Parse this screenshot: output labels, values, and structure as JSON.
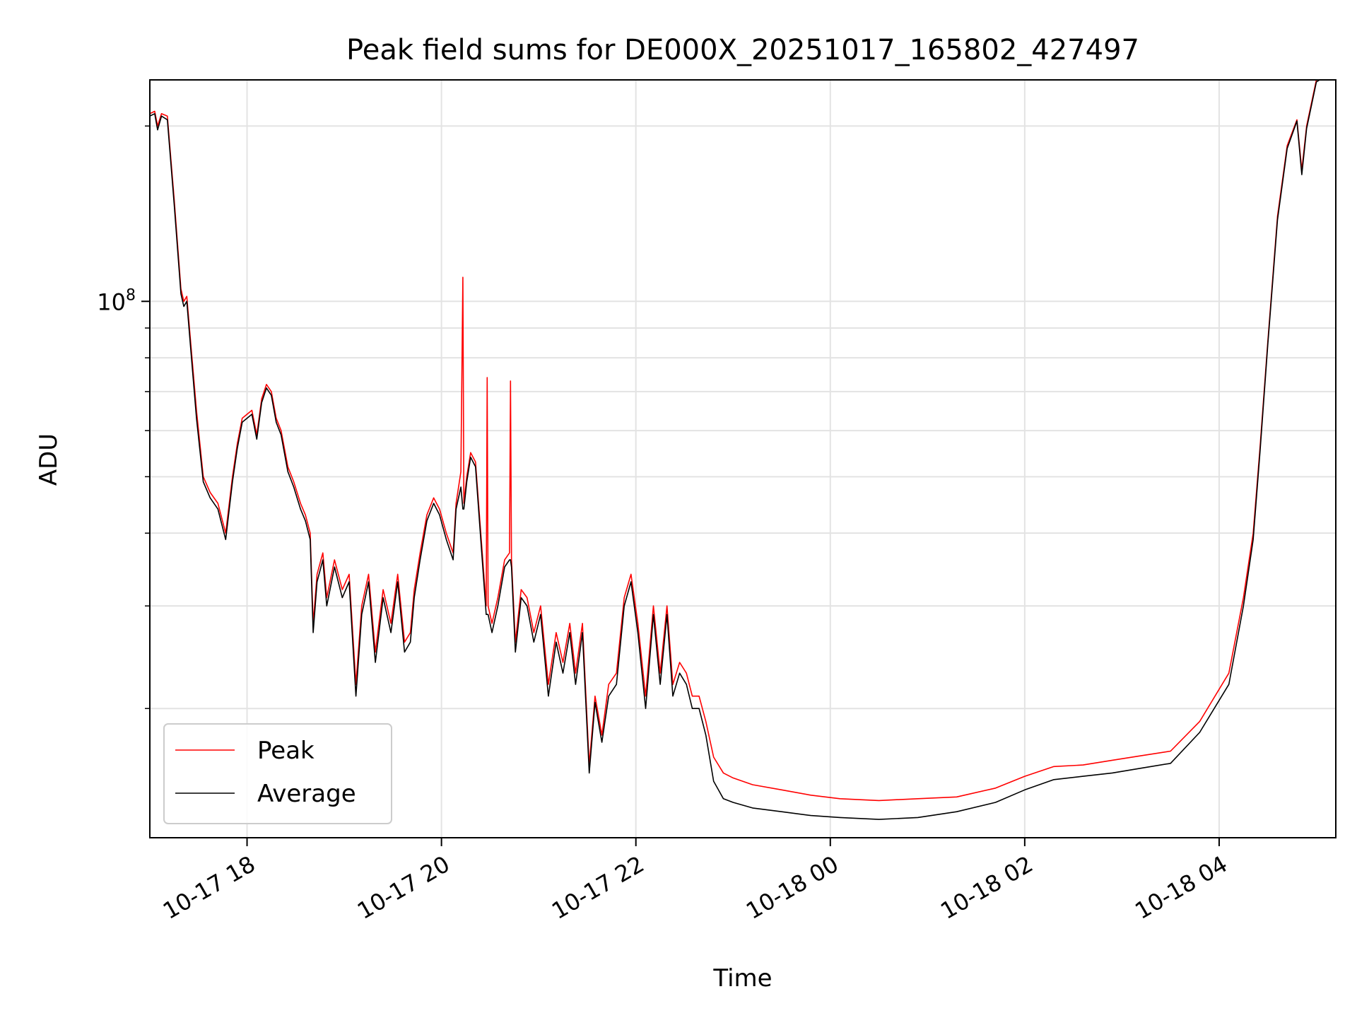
{
  "chart_data": {
    "type": "line",
    "title": "Peak field sums for DE000X_20251017_165802_427497",
    "xlabel": "Time",
    "ylabel": "ADU",
    "yscale": "log",
    "xlim": [
      17.0,
      29.2
    ],
    "ylim": [
      12000000,
      240000000
    ],
    "x_unit": "hours since 2025-10-17 00:00",
    "grid": true,
    "legend_position": "lower-left",
    "x_ticks": [
      {
        "value": 18,
        "label": "10-17 18"
      },
      {
        "value": 20,
        "label": "10-17 20"
      },
      {
        "value": 22,
        "label": "10-17 22"
      },
      {
        "value": 24,
        "label": "10-18 00"
      },
      {
        "value": 26,
        "label": "10-18 02"
      },
      {
        "value": 28,
        "label": "10-18 04"
      }
    ],
    "y_major_ticks": [
      {
        "value": 100000000,
        "base": "10",
        "exponent": "8"
      }
    ],
    "y_minor_ticks": [
      20000000,
      30000000,
      40000000,
      50000000,
      60000000,
      70000000,
      80000000,
      90000000,
      200000000
    ],
    "series": [
      {
        "name": "Peak",
        "color": "#ff0000",
        "x": [
          17.0,
          17.05,
          17.08,
          17.12,
          17.18,
          17.25,
          17.32,
          17.35,
          17.38,
          17.42,
          17.48,
          17.55,
          17.62,
          17.7,
          17.78,
          17.85,
          17.9,
          17.95,
          18.05,
          18.1,
          18.15,
          18.2,
          18.25,
          18.3,
          18.35,
          18.42,
          18.48,
          18.55,
          18.6,
          18.65,
          18.68,
          18.72,
          18.78,
          18.82,
          18.9,
          18.98,
          19.05,
          19.12,
          19.18,
          19.25,
          19.32,
          19.4,
          19.48,
          19.55,
          19.62,
          19.68,
          19.72,
          19.78,
          19.85,
          19.92,
          19.98,
          20.05,
          20.12,
          20.15,
          20.2,
          20.22,
          20.23,
          20.26,
          20.3,
          20.35,
          20.4,
          20.46,
          20.47,
          20.48,
          20.52,
          20.58,
          20.65,
          20.7,
          20.71,
          20.72,
          20.76,
          20.82,
          20.88,
          20.95,
          21.02,
          21.1,
          21.18,
          21.25,
          21.32,
          21.38,
          21.45,
          21.52,
          21.58,
          21.65,
          21.72,
          21.8,
          21.88,
          21.95,
          22.02,
          22.1,
          22.18,
          22.25,
          22.32,
          22.38,
          22.45,
          22.52,
          22.58,
          22.65,
          22.72,
          22.8,
          22.9,
          23.0,
          23.2,
          23.5,
          23.8,
          24.1,
          24.5,
          24.9,
          25.3,
          25.7,
          26.0,
          26.3,
          26.6,
          26.9,
          27.2,
          27.5,
          27.8,
          28.1,
          28.25,
          28.35,
          28.42,
          28.5,
          28.6,
          28.7,
          28.8,
          28.85,
          28.9,
          29.0,
          29.1,
          29.2
        ],
        "y": [
          210000000,
          212000000,
          200000000,
          210000000,
          208000000,
          150000000,
          105000000,
          100000000,
          102000000,
          85000000,
          65000000,
          50000000,
          47000000,
          45000000,
          40000000,
          50000000,
          57000000,
          63000000,
          65000000,
          59000000,
          68000000,
          72000000,
          70000000,
          63000000,
          60000000,
          52000000,
          49000000,
          45000000,
          43000000,
          40000000,
          28000000,
          34000000,
          37000000,
          31000000,
          36000000,
          32000000,
          34000000,
          22000000,
          30000000,
          34000000,
          25000000,
          32000000,
          28000000,
          34000000,
          26000000,
          27000000,
          32000000,
          37000000,
          43000000,
          46000000,
          44000000,
          40000000,
          37000000,
          45000000,
          51000000,
          110000000,
          45000000,
          50000000,
          55000000,
          53000000,
          41000000,
          30000000,
          74000000,
          30000000,
          28000000,
          31000000,
          36000000,
          37000000,
          73000000,
          36000000,
          26000000,
          32000000,
          31000000,
          27000000,
          30000000,
          22000000,
          27000000,
          24000000,
          28000000,
          23000000,
          28000000,
          16000000,
          21000000,
          18000000,
          22000000,
          23000000,
          31000000,
          34000000,
          28000000,
          21000000,
          30000000,
          23000000,
          30000000,
          22000000,
          24000000,
          23000000,
          21000000,
          21000000,
          19000000,
          16500000,
          15500000,
          15200000,
          14800000,
          14500000,
          14200000,
          14000000,
          13900000,
          14000000,
          14100000,
          14600000,
          15300000,
          15900000,
          16000000,
          16300000,
          16600000,
          16900000,
          19000000,
          23000000,
          31000000,
          40000000,
          56000000,
          85000000,
          140000000,
          185000000,
          205000000,
          168000000,
          200000000,
          240000000,
          245000000,
          245000000
        ]
      },
      {
        "name": "Average",
        "color": "#000000",
        "x": [
          17.0,
          17.05,
          17.08,
          17.12,
          17.18,
          17.25,
          17.32,
          17.35,
          17.38,
          17.42,
          17.48,
          17.55,
          17.62,
          17.7,
          17.78,
          17.85,
          17.9,
          17.95,
          18.05,
          18.1,
          18.15,
          18.2,
          18.25,
          18.3,
          18.35,
          18.42,
          18.48,
          18.55,
          18.6,
          18.65,
          18.68,
          18.72,
          18.78,
          18.82,
          18.9,
          18.98,
          19.05,
          19.12,
          19.18,
          19.25,
          19.32,
          19.4,
          19.48,
          19.55,
          19.62,
          19.68,
          19.72,
          19.78,
          19.85,
          19.92,
          19.98,
          20.05,
          20.12,
          20.15,
          20.2,
          20.22,
          20.23,
          20.26,
          20.3,
          20.35,
          20.4,
          20.46,
          20.47,
          20.48,
          20.52,
          20.58,
          20.65,
          20.7,
          20.71,
          20.72,
          20.76,
          20.82,
          20.88,
          20.95,
          21.02,
          21.1,
          21.18,
          21.25,
          21.32,
          21.38,
          21.45,
          21.52,
          21.58,
          21.65,
          21.72,
          21.8,
          21.88,
          21.95,
          22.02,
          22.1,
          22.18,
          22.25,
          22.32,
          22.38,
          22.45,
          22.52,
          22.58,
          22.65,
          22.72,
          22.8,
          22.9,
          23.0,
          23.2,
          23.5,
          23.8,
          24.1,
          24.5,
          24.9,
          25.3,
          25.7,
          26.0,
          26.3,
          26.6,
          26.9,
          27.2,
          27.5,
          27.8,
          28.1,
          28.25,
          28.35,
          28.42,
          28.5,
          28.6,
          28.7,
          28.8,
          28.85,
          28.9,
          29.0,
          29.1,
          29.2
        ],
        "y": [
          208000000,
          210000000,
          197000000,
          208000000,
          205000000,
          147000000,
          103000000,
          98000000,
          100000000,
          83000000,
          63000000,
          49000000,
          46000000,
          44000000,
          39000000,
          49000000,
          56000000,
          62000000,
          64000000,
          58000000,
          67000000,
          71000000,
          69000000,
          62000000,
          59000000,
          51000000,
          48000000,
          44000000,
          42000000,
          39000000,
          27000000,
          33000000,
          36000000,
          30000000,
          35000000,
          31000000,
          33000000,
          21000000,
          29000000,
          33000000,
          24000000,
          31000000,
          27000000,
          33000000,
          25000000,
          26000000,
          31000000,
          36000000,
          42000000,
          45000000,
          43000000,
          39000000,
          36000000,
          44000000,
          48000000,
          44000000,
          44000000,
          49000000,
          54000000,
          52000000,
          40000000,
          29000000,
          29000000,
          29000000,
          27000000,
          30000000,
          35000000,
          36000000,
          36000000,
          35000000,
          25000000,
          31000000,
          30000000,
          26000000,
          29000000,
          21000000,
          26000000,
          23000000,
          27000000,
          22000000,
          27000000,
          15500000,
          20500000,
          17500000,
          21000000,
          22000000,
          30000000,
          33000000,
          27000000,
          20000000,
          29000000,
          22000000,
          29000000,
          21000000,
          23000000,
          22000000,
          20000000,
          20000000,
          18000000,
          15000000,
          14000000,
          13800000,
          13500000,
          13300000,
          13100000,
          13000000,
          12900000,
          13000000,
          13300000,
          13800000,
          14500000,
          15100000,
          15300000,
          15500000,
          15800000,
          16100000,
          18200000,
          22000000,
          30000000,
          39000000,
          55000000,
          84000000,
          138000000,
          183000000,
          204000000,
          165000000,
          198000000,
          238000000,
          244000000,
          245000000
        ]
      }
    ]
  }
}
